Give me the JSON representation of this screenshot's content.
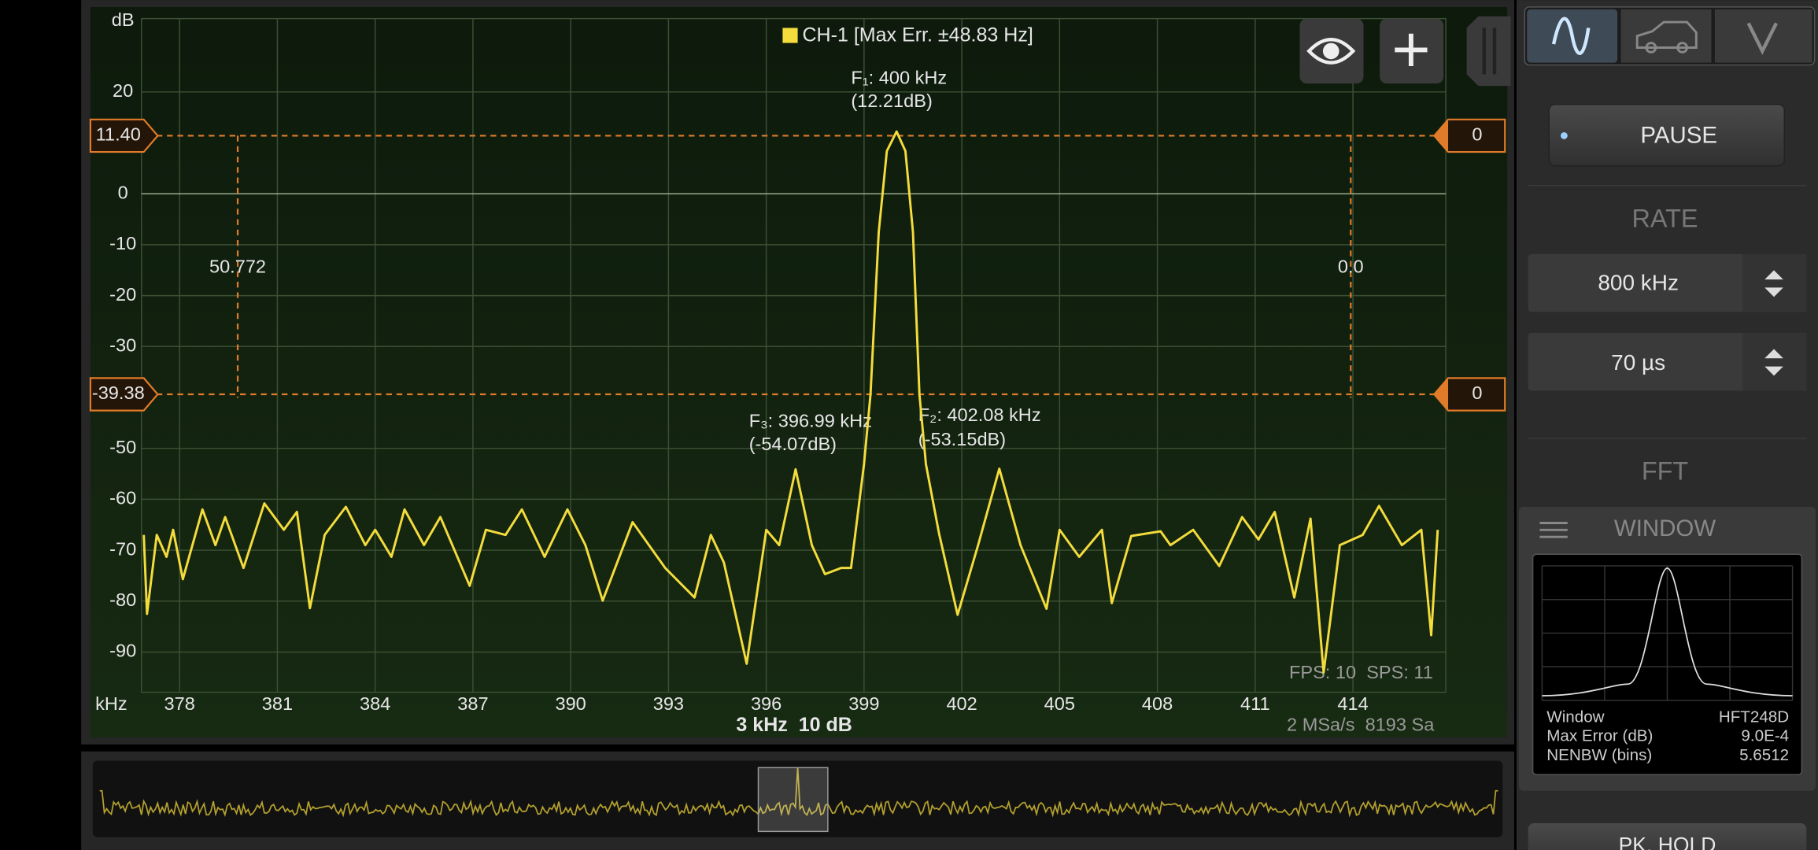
{
  "chart_data": {
    "type": "line",
    "ylabel": "dB",
    "xlabel": "kHz",
    "x": [
      376.9,
      377.0,
      377.3,
      377.6,
      377.8,
      378.1,
      378.7,
      379.1,
      379.4,
      379.96,
      380.6,
      381.2,
      381.6,
      382.0,
      382.45,
      383.1,
      383.7,
      384.0,
      384.5,
      384.9,
      385.5,
      386.0,
      386.9,
      387.4,
      388.0,
      388.5,
      389.2,
      389.9,
      390.45,
      390.98,
      391.9,
      392.9,
      393.8,
      394.3,
      394.7,
      395.4,
      396.0,
      396.4,
      396.9,
      397.4,
      397.8,
      398.3,
      398.6,
      399.0,
      399.2,
      399.45,
      399.7,
      400.0,
      400.27,
      400.5,
      400.7,
      400.9,
      401.3,
      401.87,
      402.5,
      403.15,
      403.8,
      404.6,
      405.0,
      405.6,
      406.3,
      406.6,
      407.2,
      408.1,
      408.4,
      409.1,
      409.9,
      410.6,
      411.1,
      411.6,
      412.2,
      412.7,
      413.1,
      413.6,
      414.3,
      414.8,
      415.5,
      416.1,
      416.4,
      416.6
    ],
    "series": [
      {
        "name": "CH-1 [Max Err. ±48.83 Hz]",
        "color": "#f3dc3c",
        "values": [
          -67,
          -82.5,
          -67,
          -71.3,
          -66,
          -75.7,
          -62,
          -69,
          -63.5,
          -73.5,
          -60.8,
          -66,
          -62.5,
          -81.4,
          -67,
          -61.5,
          -69,
          -66,
          -71.3,
          -62,
          -69,
          -63.5,
          -77,
          -66,
          -67,
          -62,
          -71.3,
          -62,
          -69,
          -79.9,
          -64.5,
          -73.5,
          -79.3,
          -67,
          -72.4,
          -92.3,
          -66,
          -69,
          -54.1,
          -69,
          -74.7,
          -73.5,
          -73.5,
          -53.1,
          -39.4,
          -7.5,
          8.4,
          12.21,
          8.4,
          -7.5,
          -39.4,
          -53.1,
          -66.7,
          -82.7,
          -69,
          -54,
          -69,
          -81.5,
          -66,
          -71.3,
          -66,
          -80.4,
          -67.2,
          -66.3,
          -69,
          -66,
          -73.1,
          -63.5,
          -67.9,
          -62.5,
          -79.3,
          -63.8,
          -94,
          -69,
          -67,
          -61.3,
          -69,
          -66,
          -86.7,
          -66
        ]
      }
    ],
    "xlim": [
      376.83,
      416.85
    ],
    "ylim": [
      -97.9,
      34.4
    ],
    "xticks": [
      378,
      381,
      384,
      387,
      390,
      393,
      396,
      399,
      402,
      405,
      408,
      411,
      414
    ],
    "yticks": [
      20,
      0,
      -10,
      -20,
      -30,
      -50,
      -60,
      -70,
      -80,
      -90
    ],
    "grid": true,
    "cursor_levels": [
      {
        "value": 11.4,
        "label": "11.40"
      },
      -39.38
    ],
    "cursor_right_labels": [
      "0",
      "0"
    ],
    "cursor_x_labels": [
      "50.772",
      "0.0"
    ],
    "annotations": [
      {
        "text": "F₁: 400 kHz",
        "level": "(12.21dB)"
      },
      {
        "text": "F₃: 396.99 kHz",
        "level": "(-54.07dB)"
      },
      {
        "text": "F₂: 402.08 kHz",
        "level": "(-53.15dB)"
      }
    ],
    "stats": "FPS: 10  SPS: 11",
    "scale_info": "3 kHz  10 dB",
    "sample_info": "2 MSa/s  8193 Sa"
  },
  "ui": {
    "pause": "PAUSE",
    "rate_label": "RATE",
    "rate": "800 kHz",
    "time": "70 µs",
    "fft_label": "FFT",
    "window_title": "WINDOW",
    "window_rows": [
      [
        "Window",
        "HFT248D"
      ],
      [
        "Max Error (dB)",
        "9.0E-4"
      ],
      [
        "NENBW (bins)",
        "5.6512"
      ]
    ],
    "pk_hold": "PK. HOLD"
  }
}
